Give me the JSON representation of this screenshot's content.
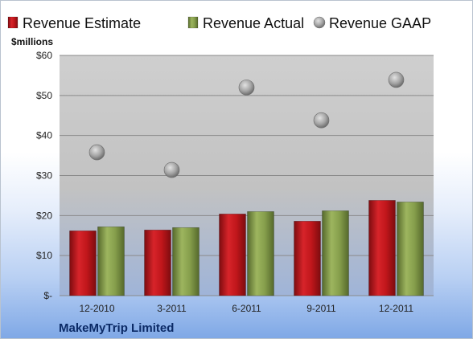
{
  "chart_data": {
    "type": "bar",
    "title": "",
    "xlabel": "",
    "ylabel": "$millions",
    "company": "MakeMyTrip Limited",
    "categories": [
      "12-2010",
      "3-2011",
      "6-2011",
      "9-2011",
      "12-2011"
    ],
    "series": [
      {
        "name": "Revenue Estimate",
        "kind": "bar",
        "color": "#c0161b",
        "values": [
          16.2,
          16.4,
          20.4,
          18.6,
          23.8
        ]
      },
      {
        "name": "Revenue Actual",
        "kind": "bar",
        "color": "#7f9a48",
        "values": [
          17.2,
          17.0,
          21.0,
          21.2,
          23.4
        ]
      },
      {
        "name": "Revenue GAAP",
        "kind": "marker",
        "color": "#a8a8a8",
        "values": [
          35.8,
          31.4,
          52.0,
          43.8,
          53.9
        ]
      }
    ],
    "ylim": [
      0,
      60
    ],
    "yticks": [
      0,
      10,
      20,
      30,
      40,
      50,
      60
    ],
    "ytick_labels": [
      "$-",
      "$10",
      "$20",
      "$30",
      "$40",
      "$50",
      "$60"
    ],
    "grid": true,
    "legend_position": "top"
  }
}
